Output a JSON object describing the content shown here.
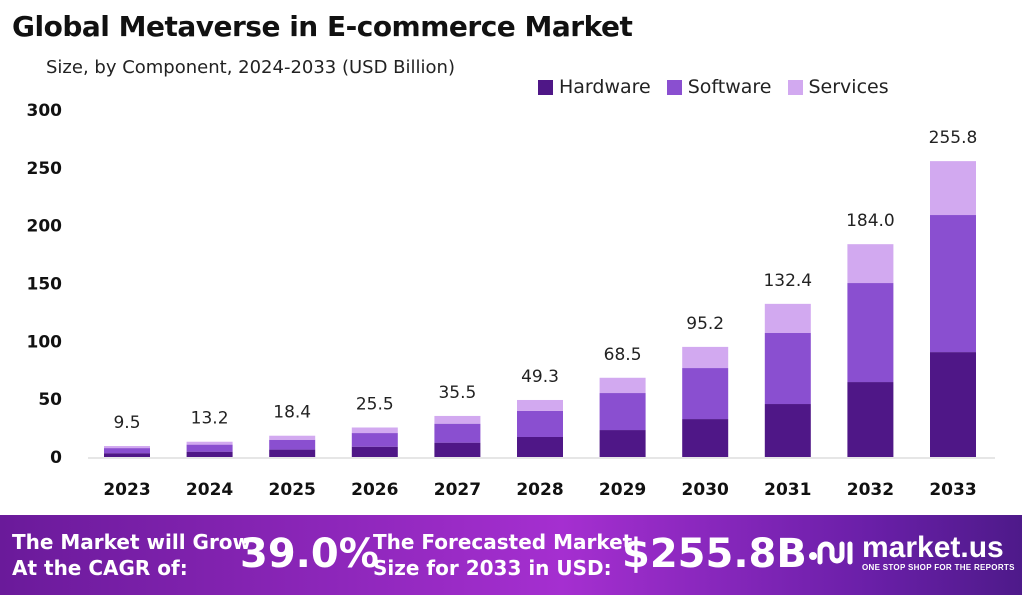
{
  "chart_data": {
    "type": "bar",
    "stacked": true,
    "title": "Global Metaverse in E-commerce Market",
    "subtitle": "Size, by Component, 2024-2033 (USD Billion)",
    "categories": [
      "2023",
      "2024",
      "2025",
      "2026",
      "2027",
      "2028",
      "2029",
      "2030",
      "2031",
      "2032",
      "2033"
    ],
    "series": [
      {
        "name": "Hardware",
        "color": "#4f1787",
        "values": [
          3.3,
          4.6,
          6.4,
          8.9,
          12.4,
          17.3,
          23.3,
          32.8,
          45.8,
          64.8,
          90.7
        ]
      },
      {
        "name": "Software",
        "color": "#8a4fd0",
        "values": [
          4.4,
          6.1,
          8.5,
          11.8,
          16.4,
          22.5,
          32.0,
          44.1,
          61.4,
          85.6,
          118.5
        ]
      },
      {
        "name": "Services",
        "color": "#d2a9f0",
        "values": [
          1.8,
          2.5,
          3.5,
          4.8,
          6.7,
          9.5,
          13.2,
          18.3,
          25.2,
          33.6,
          46.6
        ]
      }
    ],
    "totals": [
      "9.5",
      "13.2",
      "18.4",
      "25.5",
      "35.5",
      "49.3",
      "68.5",
      "95.2",
      "132.4",
      "184.0",
      "255.8"
    ],
    "ylim": [
      0,
      300
    ],
    "yticks": [
      "0",
      "50",
      "100",
      "150",
      "200",
      "250",
      "300"
    ],
    "grid": false,
    "legend_position": "top-right"
  },
  "footer": {
    "cagr_label_line1": "The Market will Grow",
    "cagr_label_line2": "At the CAGR of:",
    "cagr_value": "39.0%",
    "forecast_label_line1": "The Forecasted Market",
    "forecast_label_line2": "Size for 2033 in USD:",
    "forecast_value": "$255.8B",
    "logo_name": "market.us",
    "logo_tagline": "ONE STOP SHOP FOR THE REPORTS"
  }
}
